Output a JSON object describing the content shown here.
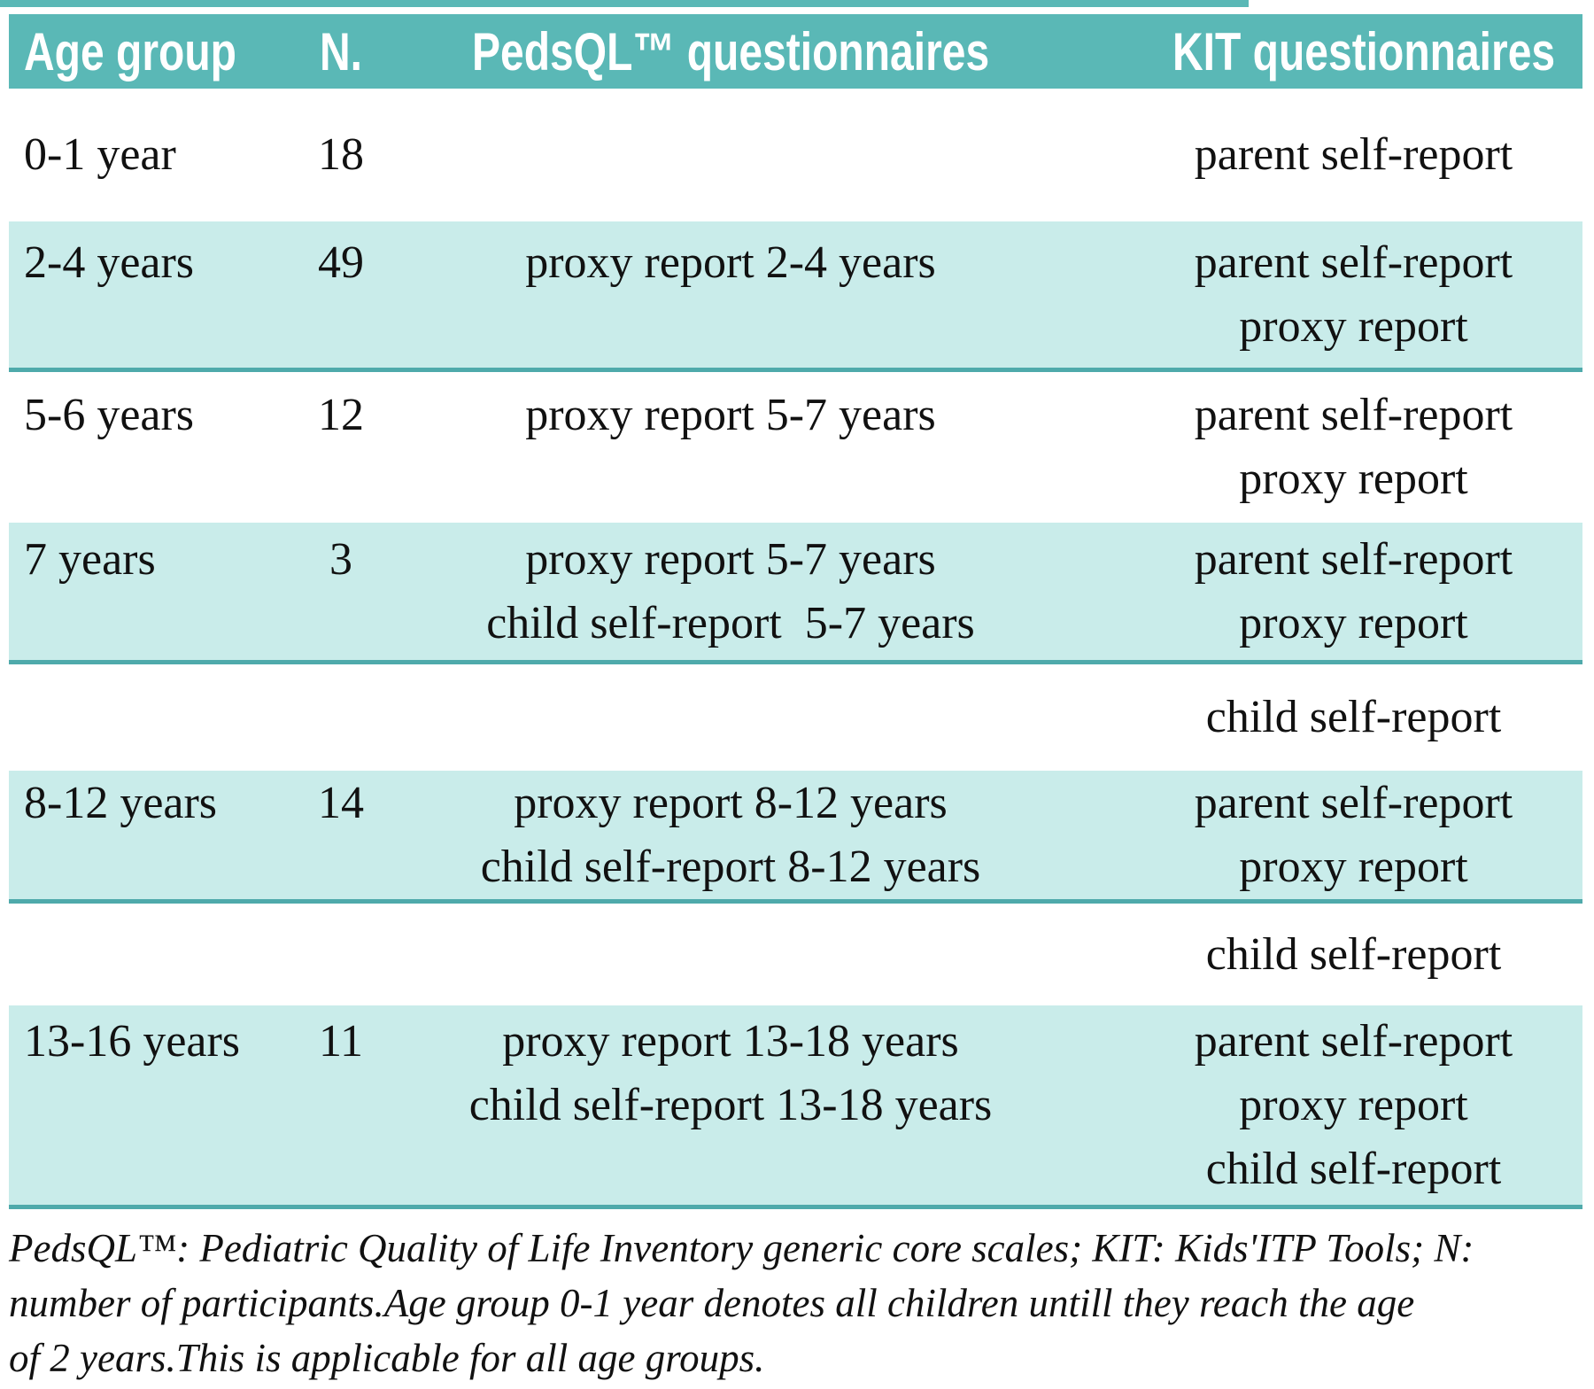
{
  "table": {
    "header": [
      "Age group",
      "N.",
      "PedsQL™ questionnaires",
      "KIT questionnaires"
    ],
    "rows": [
      {
        "shade": "white",
        "age": "0-1 year",
        "n": "18",
        "pedsql": [],
        "kit": [
          "parent self-report"
        ]
      },
      {
        "shade": "teal",
        "age": "2-4 years",
        "n": "49",
        "pedsql": [
          "proxy report 2-4 years"
        ],
        "kit": [
          "parent self-report",
          "proxy report"
        ]
      },
      {
        "shade": "white",
        "age": "5-6 years",
        "n": "12",
        "pedsql": [
          "proxy report 5-7 years"
        ],
        "kit": [
          "parent self-report",
          "proxy report"
        ]
      },
      {
        "shade": "teal",
        "age": "7 years",
        "n": "3",
        "pedsql": [
          "proxy report 5-7 years",
          "child self-report  5-7 years"
        ],
        "kit": [
          "parent self-report",
          "proxy report"
        ]
      },
      {
        "shade": "white",
        "age": "",
        "n": "",
        "pedsql": [],
        "kit": [
          "child self-report"
        ]
      },
      {
        "shade": "teal",
        "age": "8-12 years",
        "n": "14",
        "pedsql": [
          "proxy report 8-12 years",
          "child self-report 8-12 years"
        ],
        "kit": [
          "parent self-report",
          "proxy report"
        ]
      },
      {
        "shade": "white",
        "age": "",
        "n": "",
        "pedsql": [],
        "kit": [
          "child self-report"
        ]
      },
      {
        "shade": "teal",
        "age": "13-16 years",
        "n": "11",
        "pedsql": [
          "proxy report 13-18 years",
          "child self-report 13-18 years"
        ],
        "kit": [
          "parent self-report",
          "proxy report",
          "child self-report"
        ]
      }
    ]
  },
  "footnote": {
    "lines": [
      "PedsQL™: Pediatric Quality of Life Inventory generic core scales; KIT: Kids'ITP Tools; N:",
      "number of participants.Age group 0-1 year denotes all children untill they reach the age",
      "of 2 years.This is applicable for all age groups."
    ]
  },
  "colors": {
    "header_teal": "#5ab8b6",
    "row_teal": "#c9ecea",
    "border_teal": "#4faaab",
    "header_text": "#ffffff",
    "body_text": "#111111"
  }
}
